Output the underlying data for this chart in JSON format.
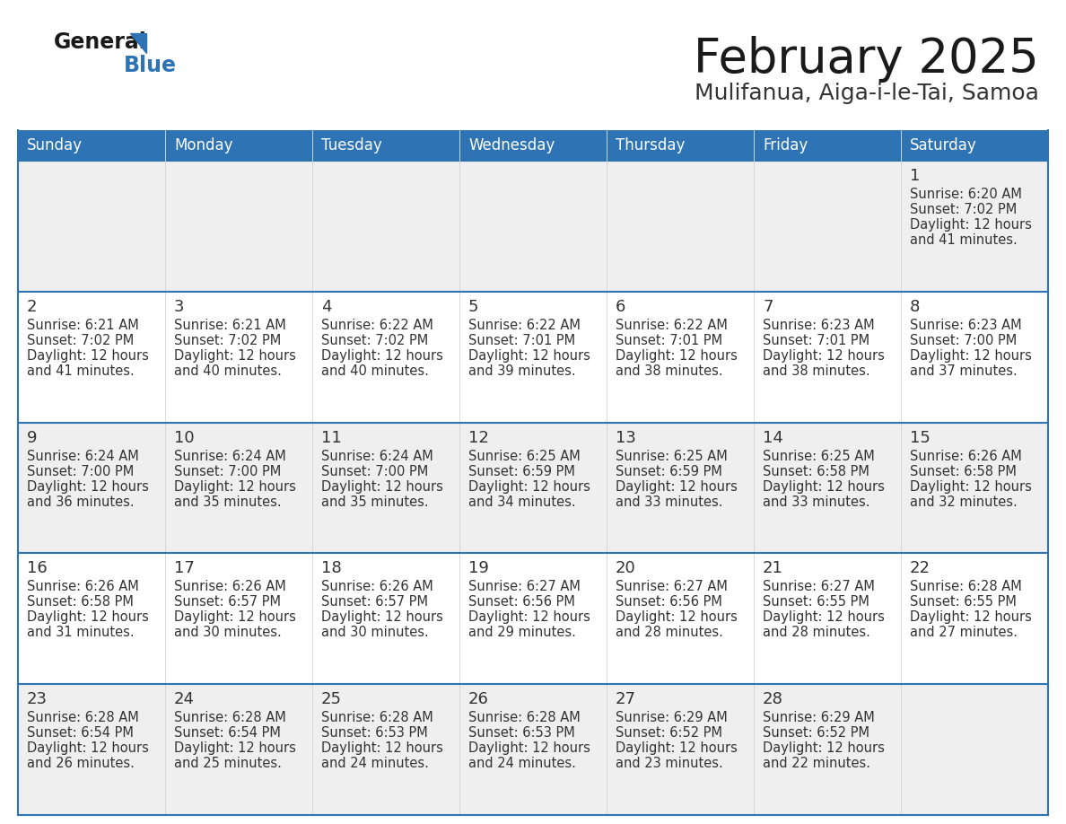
{
  "title": "February 2025",
  "subtitle": "Mulifanua, Aiga-i-le-Tai, Samoa",
  "days_of_week": [
    "Sunday",
    "Monday",
    "Tuesday",
    "Wednesday",
    "Thursday",
    "Friday",
    "Saturday"
  ],
  "header_bg": "#2E74B5",
  "header_text": "#FFFFFF",
  "row_bg_odd": "#EFEFEF",
  "row_bg_even": "#FFFFFF",
  "cell_border_color": "#2E74B5",
  "cell_inner_border": "#CCCCCC",
  "day_number_color": "#333333",
  "info_text_color": "#333333",
  "title_color": "#1a1a1a",
  "subtitle_color": "#333333",
  "background_color": "#FFFFFF",
  "calendar_data": [
    [
      null,
      null,
      null,
      null,
      null,
      null,
      {
        "day": 1,
        "sunrise": "6:20 AM",
        "sunset": "7:02 PM",
        "daylight": "12 hours and 41 minutes."
      }
    ],
    [
      {
        "day": 2,
        "sunrise": "6:21 AM",
        "sunset": "7:02 PM",
        "daylight": "12 hours and 41 minutes."
      },
      {
        "day": 3,
        "sunrise": "6:21 AM",
        "sunset": "7:02 PM",
        "daylight": "12 hours and 40 minutes."
      },
      {
        "day": 4,
        "sunrise": "6:22 AM",
        "sunset": "7:02 PM",
        "daylight": "12 hours and 40 minutes."
      },
      {
        "day": 5,
        "sunrise": "6:22 AM",
        "sunset": "7:01 PM",
        "daylight": "12 hours and 39 minutes."
      },
      {
        "day": 6,
        "sunrise": "6:22 AM",
        "sunset": "7:01 PM",
        "daylight": "12 hours and 38 minutes."
      },
      {
        "day": 7,
        "sunrise": "6:23 AM",
        "sunset": "7:01 PM",
        "daylight": "12 hours and 38 minutes."
      },
      {
        "day": 8,
        "sunrise": "6:23 AM",
        "sunset": "7:00 PM",
        "daylight": "12 hours and 37 minutes."
      }
    ],
    [
      {
        "day": 9,
        "sunrise": "6:24 AM",
        "sunset": "7:00 PM",
        "daylight": "12 hours and 36 minutes."
      },
      {
        "day": 10,
        "sunrise": "6:24 AM",
        "sunset": "7:00 PM",
        "daylight": "12 hours and 35 minutes."
      },
      {
        "day": 11,
        "sunrise": "6:24 AM",
        "sunset": "7:00 PM",
        "daylight": "12 hours and 35 minutes."
      },
      {
        "day": 12,
        "sunrise": "6:25 AM",
        "sunset": "6:59 PM",
        "daylight": "12 hours and 34 minutes."
      },
      {
        "day": 13,
        "sunrise": "6:25 AM",
        "sunset": "6:59 PM",
        "daylight": "12 hours and 33 minutes."
      },
      {
        "day": 14,
        "sunrise": "6:25 AM",
        "sunset": "6:58 PM",
        "daylight": "12 hours and 33 minutes."
      },
      {
        "day": 15,
        "sunrise": "6:26 AM",
        "sunset": "6:58 PM",
        "daylight": "12 hours and 32 minutes."
      }
    ],
    [
      {
        "day": 16,
        "sunrise": "6:26 AM",
        "sunset": "6:58 PM",
        "daylight": "12 hours and 31 minutes."
      },
      {
        "day": 17,
        "sunrise": "6:26 AM",
        "sunset": "6:57 PM",
        "daylight": "12 hours and 30 minutes."
      },
      {
        "day": 18,
        "sunrise": "6:26 AM",
        "sunset": "6:57 PM",
        "daylight": "12 hours and 30 minutes."
      },
      {
        "day": 19,
        "sunrise": "6:27 AM",
        "sunset": "6:56 PM",
        "daylight": "12 hours and 29 minutes."
      },
      {
        "day": 20,
        "sunrise": "6:27 AM",
        "sunset": "6:56 PM",
        "daylight": "12 hours and 28 minutes."
      },
      {
        "day": 21,
        "sunrise": "6:27 AM",
        "sunset": "6:55 PM",
        "daylight": "12 hours and 28 minutes."
      },
      {
        "day": 22,
        "sunrise": "6:28 AM",
        "sunset": "6:55 PM",
        "daylight": "12 hours and 27 minutes."
      }
    ],
    [
      {
        "day": 23,
        "sunrise": "6:28 AM",
        "sunset": "6:54 PM",
        "daylight": "12 hours and 26 minutes."
      },
      {
        "day": 24,
        "sunrise": "6:28 AM",
        "sunset": "6:54 PM",
        "daylight": "12 hours and 25 minutes."
      },
      {
        "day": 25,
        "sunrise": "6:28 AM",
        "sunset": "6:53 PM",
        "daylight": "12 hours and 24 minutes."
      },
      {
        "day": 26,
        "sunrise": "6:28 AM",
        "sunset": "6:53 PM",
        "daylight": "12 hours and 24 minutes."
      },
      {
        "day": 27,
        "sunrise": "6:29 AM",
        "sunset": "6:52 PM",
        "daylight": "12 hours and 23 minutes."
      },
      {
        "day": 28,
        "sunrise": "6:29 AM",
        "sunset": "6:52 PM",
        "daylight": "12 hours and 22 minutes."
      },
      null
    ]
  ]
}
